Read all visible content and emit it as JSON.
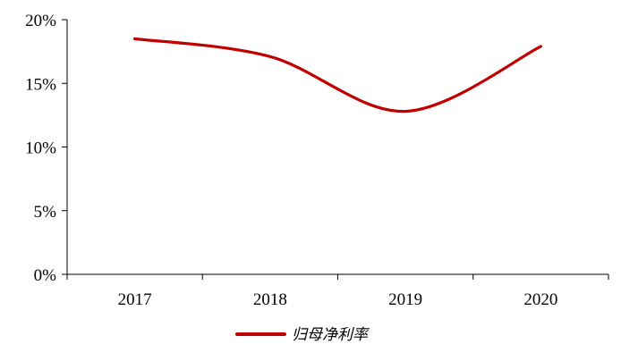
{
  "chart_data": {
    "type": "line",
    "categories": [
      "2017",
      "2018",
      "2019",
      "2020"
    ],
    "series": [
      {
        "name": "归母净利率",
        "values": [
          18.5,
          17.1,
          12.8,
          17.9
        ],
        "color": "#c00000"
      }
    ],
    "ylim": [
      0,
      20
    ],
    "yticks": [
      0,
      5,
      10,
      15,
      20
    ],
    "ytick_labels": [
      "0%",
      "5%",
      "10%",
      "15%",
      "20%"
    ],
    "legend": "bottom",
    "grid": false
  }
}
